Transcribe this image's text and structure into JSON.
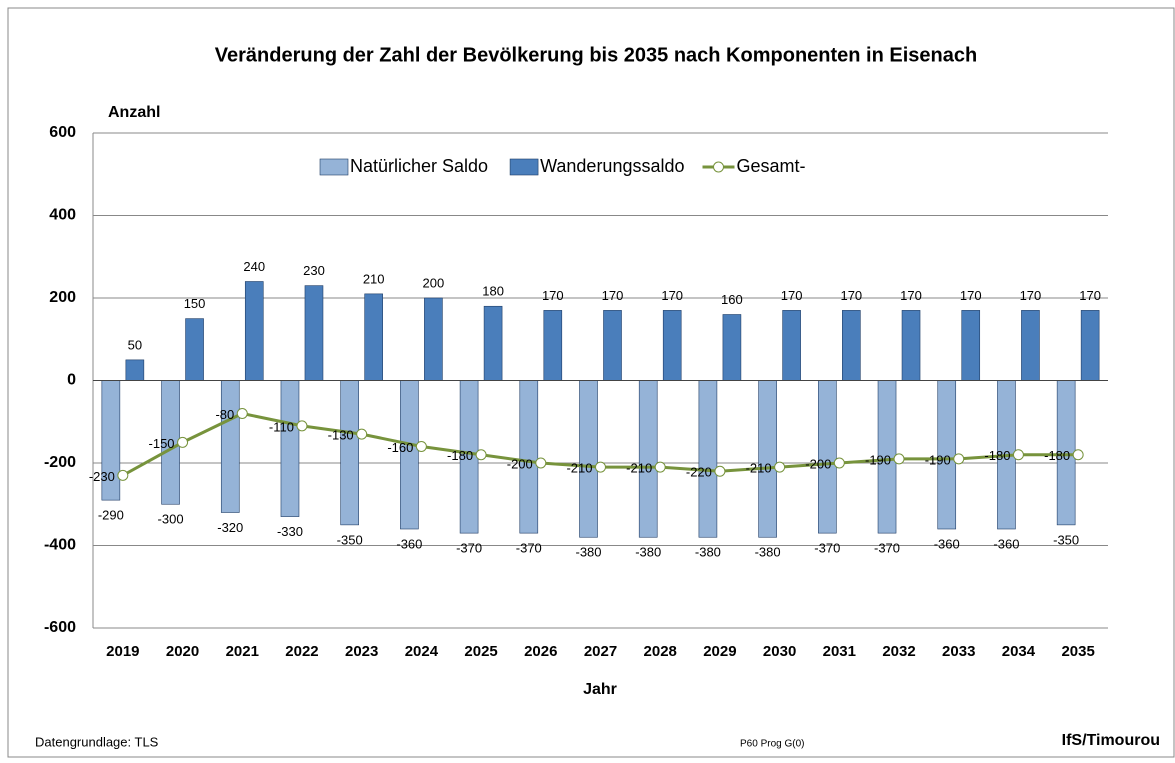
{
  "chart_data": {
    "type": "bar-line",
    "title": "Veränderung der Zahl der Bevölkerung bis 2035 nach Komponenten in Eisenach",
    "y_axis_label": "Anzahl",
    "x_axis_label": "Jahr",
    "categories": [
      "2019",
      "2020",
      "2021",
      "2022",
      "2023",
      "2024",
      "2025",
      "2026",
      "2027",
      "2028",
      "2029",
      "2030",
      "2031",
      "2032",
      "2033",
      "2034",
      "2035"
    ],
    "series": [
      {
        "name": "Natürlicher Saldo",
        "kind": "bar",
        "color": "#95b3d7",
        "values": [
          -290,
          -300,
          -320,
          -330,
          -350,
          -360,
          -370,
          -370,
          -380,
          -380,
          -380,
          -380,
          -370,
          -370,
          -360,
          -360,
          -350
        ]
      },
      {
        "name": "Wanderungssaldo",
        "kind": "bar",
        "color": "#4a7ebb",
        "values": [
          50,
          150,
          240,
          230,
          210,
          200,
          180,
          170,
          170,
          170,
          160,
          170,
          170,
          170,
          170,
          170,
          170
        ]
      },
      {
        "name": "Gesamt-",
        "kind": "line",
        "color": "#77933c",
        "values": [
          -230,
          -150,
          -80,
          -110,
          -130,
          -160,
          -180,
          -200,
          -210,
          -210,
          -220,
          -210,
          -200,
          -190,
          -190,
          -180,
          -180
        ]
      }
    ],
    "ylim": [
      -600,
      600
    ],
    "yticks": [
      -600,
      -400,
      -200,
      0,
      200,
      400,
      600
    ],
    "grid": true,
    "legend": "top",
    "footer": {
      "source": "Datengrundlage: TLS",
      "code": "P60 Prog G(0)",
      "author": "IfS/Timourou"
    }
  }
}
